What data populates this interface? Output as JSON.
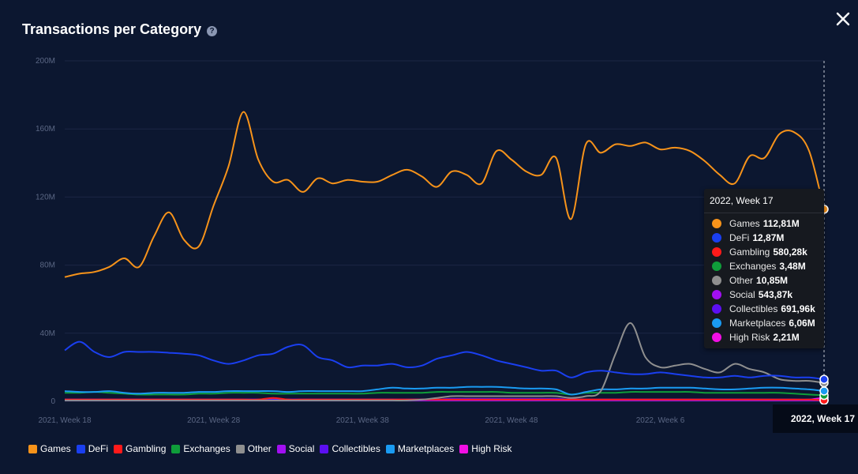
{
  "title": "Transactions per Category",
  "help_icon": "question-circle-icon",
  "close_icon": "close-icon",
  "colors": {
    "background": "#0c1730",
    "grid": "#1b2744",
    "axis_text": "#5b6784",
    "crosshair": "#c9ced8",
    "Games": "#f7931a",
    "DeFi": "#1a3ff0",
    "Gambling": "#ff1a1a",
    "Exchanges": "#0f9d3a",
    "Other": "#8f8f8f",
    "Social": "#a20ff2",
    "Collectibles": "#5c0ff2",
    "Marketplaces": "#1a9bf2",
    "High Risk": "#f20fe4"
  },
  "tooltip": {
    "header": "2022, Week 17",
    "rows": [
      {
        "name": "Games",
        "value": "112,81M"
      },
      {
        "name": "DeFi",
        "value": "12,87M"
      },
      {
        "name": "Gambling",
        "value": "580,28k"
      },
      {
        "name": "Exchanges",
        "value": "3,48M"
      },
      {
        "name": "Other",
        "value": "10,85M"
      },
      {
        "name": "Social",
        "value": "543,87k"
      },
      {
        "name": "Collectibles",
        "value": "691,96k"
      },
      {
        "name": "Marketplaces",
        "value": "6,06M"
      },
      {
        "name": "High Risk",
        "value": "2,21M"
      }
    ]
  },
  "x_highlight_label": "2022, Week 17",
  "chart_data": {
    "type": "line",
    "title": "Transactions per Category",
    "xlabel": "",
    "ylabel": "",
    "ylim": [
      0,
      200000000
    ],
    "yticks": [
      0,
      40000000,
      80000000,
      120000000,
      160000000,
      200000000
    ],
    "ytick_labels": [
      "0",
      "40M",
      "80M",
      "120M",
      "160M",
      "200M"
    ],
    "x_range": [
      0,
      51
    ],
    "xticks": [
      0,
      10,
      20,
      30,
      40
    ],
    "xtick_labels": [
      "2021, Week 18",
      "2021, Week 28",
      "2021, Week 38",
      "2021, Week 48",
      "2022, Week 6"
    ],
    "hover_index": 51,
    "grid": true,
    "legend_position": "bottom-left",
    "series": [
      {
        "name": "Games",
        "values": [
          73,
          75,
          76,
          79,
          84,
          79,
          97,
          111,
          95,
          91,
          115,
          138,
          170,
          142,
          129,
          130,
          123,
          131,
          128,
          130,
          129,
          129,
          133,
          136,
          132,
          126,
          135,
          133,
          128,
          147,
          142,
          135,
          133,
          143,
          107,
          151,
          146,
          151,
          150,
          152,
          148,
          149,
          147,
          141,
          133,
          128,
          144,
          143,
          157,
          158,
          147,
          112.8
        ]
      },
      {
        "name": "DeFi",
        "values": [
          30,
          35,
          29,
          26,
          29,
          29,
          29,
          28.5,
          28,
          27,
          24,
          22,
          24,
          27,
          28,
          32,
          33,
          26,
          24,
          20,
          21,
          21,
          22,
          20,
          21,
          25,
          27,
          29,
          27,
          24,
          22,
          20,
          18,
          18,
          14,
          17,
          18,
          17,
          16,
          16,
          17,
          16,
          15,
          14,
          14,
          15,
          14,
          15,
          15,
          14,
          14,
          12.9
        ]
      },
      {
        "name": "Gambling",
        "values": [
          1,
          1,
          1,
          1,
          1,
          1,
          1,
          1,
          1,
          1,
          1,
          1,
          1,
          1,
          2,
          1,
          1,
          1,
          1,
          1,
          1,
          1,
          1,
          1,
          1,
          1,
          1,
          1,
          1,
          1,
          1,
          1,
          1,
          1,
          1,
          1,
          1,
          1,
          1,
          1,
          1,
          1,
          1,
          1,
          1,
          1,
          1,
          1,
          1,
          1,
          1,
          0.58
        ]
      },
      {
        "name": "Exchanges",
        "values": [
          5,
          5,
          5.5,
          5,
          4.5,
          4,
          4,
          4,
          4,
          4.5,
          4.5,
          5,
          5,
          5,
          4.5,
          4.5,
          4.5,
          4.5,
          4.5,
          4.5,
          4.5,
          5,
          5,
          5,
          5,
          5.5,
          5.5,
          5.5,
          5.5,
          5.5,
          5,
          5,
          5,
          5,
          4,
          5,
          5,
          5,
          5.5,
          5.5,
          5.5,
          5.5,
          5.5,
          5,
          5,
          5,
          5,
          5,
          5,
          4.5,
          4,
          3.48
        ]
      },
      {
        "name": "Other",
        "values": [
          0.5,
          0.5,
          0.5,
          0.5,
          0.5,
          0.5,
          0.5,
          0.5,
          0.5,
          0.5,
          0.5,
          0.5,
          0.5,
          0.5,
          0.5,
          0.5,
          0.5,
          0.5,
          0.5,
          0.5,
          0.5,
          0.5,
          0.5,
          0.5,
          1,
          2,
          3,
          3,
          3,
          3,
          3,
          3,
          3,
          3,
          2,
          3,
          6,
          28,
          46,
          26,
          20,
          21,
          22,
          19,
          17,
          22,
          19,
          17,
          13,
          12,
          12,
          10.85
        ]
      },
      {
        "name": "Social",
        "values": [
          0.5,
          0.5,
          0.5,
          0.5,
          0.5,
          0.5,
          0.5,
          0.5,
          0.5,
          0.5,
          0.5,
          0.5,
          0.5,
          0.5,
          0.5,
          0.5,
          0.5,
          0.5,
          0.5,
          0.5,
          0.5,
          0.5,
          0.5,
          0.5,
          0.5,
          0.5,
          0.5,
          0.5,
          0.5,
          0.5,
          0.5,
          0.5,
          0.5,
          0.5,
          0.5,
          0.5,
          0.5,
          0.5,
          0.5,
          0.5,
          0.5,
          0.5,
          0.5,
          0.5,
          0.5,
          0.5,
          0.5,
          0.5,
          0.5,
          0.5,
          0.5,
          0.54
        ]
      },
      {
        "name": "Collectibles",
        "values": [
          1,
          1,
          1,
          1,
          1,
          1,
          1,
          1,
          1,
          1,
          1,
          1,
          1,
          1,
          1,
          1,
          1,
          1,
          1,
          1,
          1,
          1,
          1,
          1,
          1,
          1,
          1.5,
          1.5,
          1.5,
          1.5,
          1.5,
          1.5,
          1.5,
          1.5,
          1,
          1,
          1,
          1,
          1,
          1,
          1,
          1,
          1,
          1,
          1,
          1,
          1,
          1,
          1,
          1,
          1,
          0.69
        ]
      },
      {
        "name": "Marketplaces",
        "values": [
          6,
          5.5,
          5.5,
          6,
          5,
          4.5,
          5,
          5,
          5,
          5.5,
          5.5,
          6,
          6,
          6,
          6,
          5.5,
          6,
          6,
          6,
          6,
          6,
          7,
          8,
          7.5,
          7.5,
          8,
          8,
          8.5,
          8.5,
          8.5,
          8,
          7.5,
          7.5,
          7,
          4,
          5.5,
          7,
          7,
          7.5,
          7.5,
          8,
          8,
          8,
          7.5,
          7,
          7,
          7.5,
          8,
          8,
          7.5,
          7,
          6.06
        ]
      },
      {
        "name": "High Risk",
        "values": [
          1,
          1,
          1,
          1,
          1,
          1,
          1,
          1,
          1,
          1,
          1,
          1,
          1,
          1,
          1,
          1,
          1,
          1,
          1,
          1,
          1,
          1,
          1,
          1,
          1,
          1,
          1,
          1,
          1,
          1,
          1,
          1,
          1,
          1,
          1,
          1,
          1,
          1,
          1,
          1,
          1,
          1,
          1,
          1,
          1,
          1,
          1,
          1,
          1,
          1,
          1,
          2.21
        ]
      }
    ],
    "value_unit": "M"
  }
}
